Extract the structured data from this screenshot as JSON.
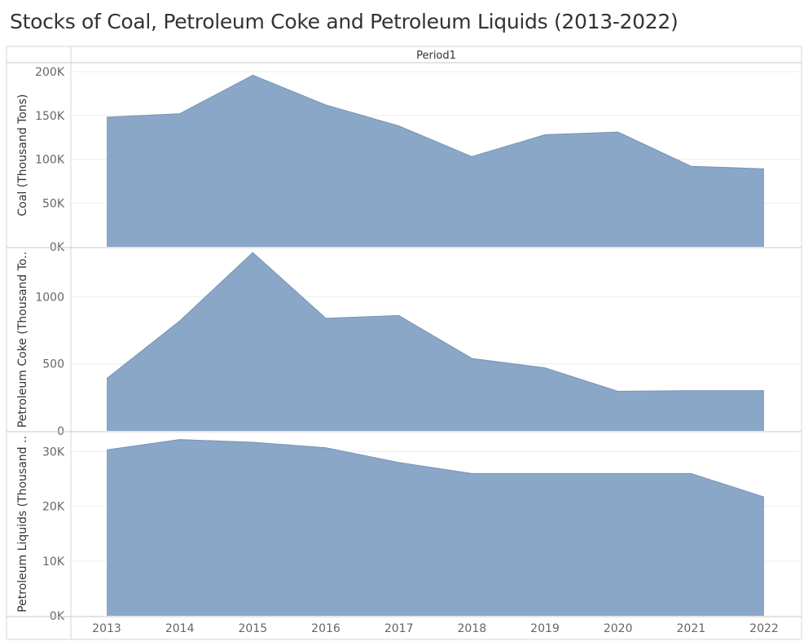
{
  "title": "Stocks of Coal, Petroleum Coke and Petroleum Liquids (2013-2022)",
  "chart_data": {
    "type": "area",
    "title": "Stocks of Coal, Petroleum Coke and Petroleum Liquids (2013-2022)",
    "column_header": "Period1",
    "x": [
      "2013",
      "2014",
      "2015",
      "2016",
      "2017",
      "2018",
      "2019",
      "2020",
      "2021",
      "2022"
    ],
    "panels": [
      {
        "ylabel": "Coal (Thousand Tons)",
        "ylim": [
          0,
          200000
        ],
        "ticks": [
          0,
          50000,
          100000,
          150000,
          200000
        ],
        "tick_labels": [
          "0K",
          "50K",
          "100K",
          "150K",
          "200K"
        ],
        "values": [
          148000,
          152000,
          196000,
          162000,
          138000,
          103000,
          128000,
          131000,
          92000,
          89000
        ]
      },
      {
        "ylabel": "Petroleum Coke (Thousand To..",
        "ylim": [
          0,
          1300
        ],
        "ticks": [
          0,
          500,
          1000
        ],
        "tick_labels": [
          "0",
          "500",
          "1000"
        ],
        "values": [
          390,
          820,
          1330,
          840,
          860,
          540,
          470,
          295,
          300,
          300
        ]
      },
      {
        "ylabel": "Petroleum Liquids (Thousand ..",
        "ylim": [
          0,
          32000
        ],
        "ticks": [
          0,
          10000,
          20000,
          30000
        ],
        "tick_labels": [
          "0K",
          "10K",
          "20K",
          "30K"
        ],
        "values": [
          30300,
          32200,
          31700,
          30700,
          28000,
          26000,
          26000,
          26000,
          26000,
          21700
        ]
      }
    ],
    "fill_color": "#8aa7c7",
    "stroke_color": "#7893b5",
    "grid": true
  }
}
